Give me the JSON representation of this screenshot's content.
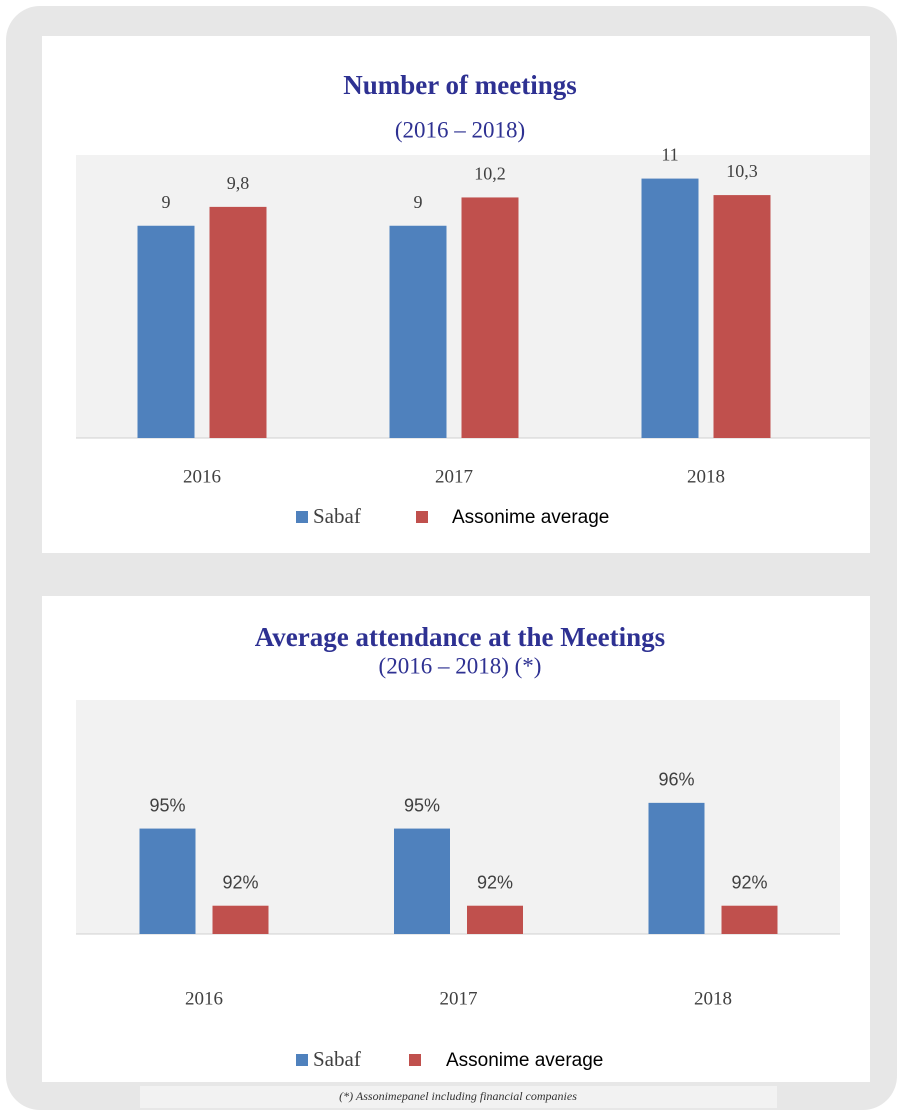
{
  "chart_data": [
    {
      "type": "bar",
      "title": "Number  of meetings",
      "subtitle": "(2016 – 2018)",
      "categories": [
        "2016",
        "2017",
        "2018"
      ],
      "series": [
        {
          "name": "Sabaf",
          "color": "#4f81bd",
          "values": [
            9,
            9,
            11
          ]
        },
        {
          "name": "Assonime average",
          "color": "#c0504d",
          "values": [
            9.8,
            10.2,
            10.3
          ],
          "value_labels": [
            "9,8",
            "10,2",
            "10,3"
          ]
        }
      ],
      "ylim": [
        0,
        12
      ]
    },
    {
      "type": "bar",
      "title": "Average  attendance at the  Meetings",
      "subtitle": "(2016 – 2018) (*)",
      "categories": [
        "2016",
        "2017",
        "2018"
      ],
      "series": [
        {
          "name": "Sabaf",
          "color": "#4f81bd",
          "values": [
            95,
            95,
            96
          ],
          "value_labels": [
            "95%",
            "95%",
            "96%"
          ]
        },
        {
          "name": "Assonime average",
          "color": "#c0504d",
          "values": [
            92,
            92,
            92
          ],
          "value_labels": [
            "92%",
            "92%",
            "92%"
          ]
        }
      ],
      "ylim": [
        90.9,
        100
      ]
    }
  ],
  "footnote": "(*) Assonimepanel including financial companies"
}
